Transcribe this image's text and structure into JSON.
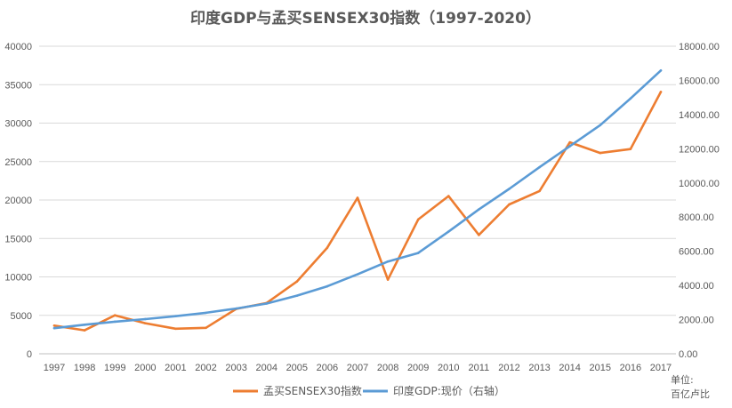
{
  "chart_data": {
    "type": "line",
    "title": "印度GDP与孟买SENSEX30指数（1997-2020）",
    "categories": [
      "1997",
      "1998",
      "1999",
      "2000",
      "2001",
      "2002",
      "2003",
      "2004",
      "2005",
      "2006",
      "2007",
      "2008",
      "2009",
      "2010",
      "2011",
      "2012",
      "2013",
      "2014",
      "2015",
      "2016",
      "2017"
    ],
    "y_left": {
      "lim": [
        0,
        40000
      ],
      "ticks": [
        "0",
        "5000",
        "10000",
        "15000",
        "20000",
        "25000",
        "30000",
        "35000",
        "40000"
      ]
    },
    "y_right": {
      "lim": [
        0,
        18000
      ],
      "ticks": [
        "0.00",
        "2000.00",
        "4000.00",
        "6000.00",
        "8000.00",
        "10000.00",
        "12000.00",
        "14000.00",
        "16000.00",
        "18000.00"
      ]
    },
    "unit_label": [
      "单位:",
      "百亿卢比"
    ],
    "grid": true,
    "legend_position": "bottom",
    "series": [
      {
        "name": "孟买SENSEX30指数",
        "axis": "left",
        "color": "#ED7D31",
        "values": [
          3659,
          3055,
          5005,
          3972,
          3262,
          3377,
          5839,
          6603,
          9398,
          13787,
          20287,
          9647,
          17465,
          20509,
          15455,
          19427,
          21171,
          27499,
          26118,
          26626,
          34057
        ]
      },
      {
        "name": "印度GDP:现价（右轴）",
        "axis": "right",
        "color": "#5B9BD5",
        "values": [
          1500,
          1700,
          1880,
          2030,
          2200,
          2400,
          2650,
          2940,
          3400,
          3950,
          4650,
          5400,
          5900,
          7150,
          8450,
          9650,
          10920,
          12150,
          13380,
          14940,
          16580
        ]
      }
    ]
  }
}
